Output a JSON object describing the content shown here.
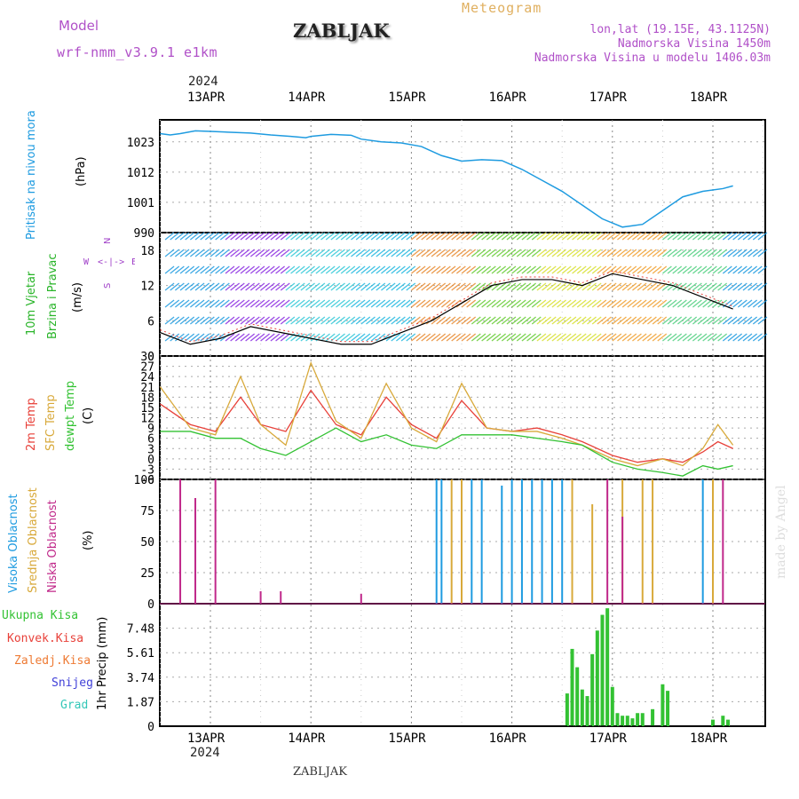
{
  "header": {
    "model_label": "Model",
    "model_value": "wrf-nmm_v3.9.1 e1km",
    "station": "ZABLJAK",
    "meteogram": "Meteogram",
    "lonlat": "lon,lat (19.15E, 43.1125N)",
    "elevation": "Nadmorska Visina 1450m",
    "model_elevation": "Nadmorska Visina u modelu 1406.03m",
    "year": "2024",
    "footer_station": "ZABLJAK",
    "watermark": "made by Angel"
  },
  "colors": {
    "pressure": "#1e9be0",
    "temp2m": "#e8413a",
    "sfc": "#d8a93a",
    "dewpt": "#33c233",
    "cloud_high": "#1e9be0",
    "cloud_mid": "#d8a93a",
    "cloud_low": "#c0288a",
    "precip_total": "#33c233",
    "precip_conv": "#e8413a",
    "precip_frozen": "#ee7a33",
    "precip_snow": "#4040d8",
    "precip_graupel": "#33c7b8",
    "wind_title": "#28b428",
    "wind_dir": "#a040c8"
  },
  "chart_data": [
    {
      "type": "line",
      "name": "pressure",
      "ylabel": [
        "Pritisak na nivou mora",
        "(hPa)"
      ],
      "yticks": [
        990,
        1001,
        1012,
        1023
      ],
      "ylim": [
        990,
        1031
      ],
      "x_days": [
        "13APR",
        "14APR",
        "15APR",
        "16APR",
        "17APR",
        "18APR"
      ],
      "x": [
        0.0,
        0.1,
        0.2,
        0.35,
        0.5,
        0.7,
        0.9,
        1.1,
        1.3,
        1.45,
        1.5,
        1.7,
        1.9,
        2.0,
        2.2,
        2.4,
        2.6,
        2.8,
        3.0,
        3.2,
        3.4,
        3.6,
        3.8,
        4.0,
        4.2,
        4.4,
        4.6,
        4.8,
        5.0,
        5.2,
        5.4,
        5.6,
        5.7
      ],
      "y": [
        1026,
        1025.5,
        1026,
        1027,
        1026.8,
        1026.5,
        1026.2,
        1025.5,
        1025,
        1024.5,
        1025,
        1025.7,
        1025.4,
        1024,
        1023,
        1022.6,
        1021.3,
        1018,
        1016,
        1016.5,
        1016.2,
        1013,
        1009,
        1005,
        1000,
        995,
        992,
        993,
        998,
        1003,
        1005,
        1006,
        1007
      ]
    },
    {
      "type": "line",
      "name": "wind",
      "ylabel": [
        "10m Vjetar",
        "Brzina i Pravac",
        "(m/s)"
      ],
      "yticks": [
        0,
        6,
        12,
        18
      ],
      "ylim": [
        0,
        21
      ],
      "legend": [
        "N",
        "W",
        "E",
        "S"
      ],
      "series": [
        {
          "x": [
            0.0,
            0.3,
            0.6,
            0.9,
            1.2,
            1.5,
            1.8,
            2.1,
            2.4,
            2.7,
            3.0,
            3.3,
            3.6,
            3.9,
            4.2,
            4.5,
            4.8,
            5.1,
            5.4,
            5.7
          ],
          "y": [
            4,
            2,
            3,
            5,
            4,
            3,
            2,
            2,
            4,
            6,
            9,
            12,
            13,
            13,
            12,
            14,
            13,
            12,
            10,
            8
          ]
        }
      ]
    },
    {
      "type": "line",
      "name": "temperature",
      "ylabel": [
        "2m Temp",
        "SFC Temp",
        "dewpt Temp",
        "(C)"
      ],
      "yticks": [
        -6,
        -3,
        0,
        3,
        6,
        9,
        12,
        15,
        18,
        21,
        24,
        27,
        30
      ],
      "ylim": [
        -6,
        30
      ],
      "x": [
        0.0,
        0.3,
        0.55,
        0.8,
        1.0,
        1.25,
        1.5,
        1.75,
        2.0,
        2.25,
        2.5,
        2.75,
        3.0,
        3.25,
        3.5,
        3.75,
        4.0,
        4.2,
        4.5,
        4.75,
        5.0,
        5.2,
        5.4,
        5.55,
        5.7
      ],
      "series": [
        {
          "name": "2m Temp",
          "y": [
            16,
            10,
            8,
            18,
            10,
            8,
            20,
            10,
            7,
            18,
            10,
            6,
            17,
            9,
            8,
            9,
            7,
            5,
            1,
            -1,
            0,
            -1,
            2,
            5,
            3
          ]
        },
        {
          "name": "SFC Temp",
          "y": [
            21,
            9,
            7,
            24,
            10,
            4,
            28,
            11,
            6,
            22,
            9,
            5,
            22,
            9,
            8,
            8,
            6,
            4,
            0,
            -2,
            0,
            -2,
            3,
            10,
            4
          ]
        },
        {
          "name": "dewpt Temp",
          "y": [
            8,
            8,
            6,
            6,
            3,
            1,
            5,
            9,
            5,
            7,
            4,
            3,
            7,
            7,
            7,
            6,
            5,
            4,
            -1,
            -3,
            -4,
            -5,
            -2,
            -3,
            -2
          ]
        }
      ]
    },
    {
      "type": "bar",
      "name": "cloud",
      "ylabel": [
        "Visoka Oblacnost",
        "Srednja Oblacnost",
        "Niska Oblacnost",
        "(%)"
      ],
      "yticks": [
        0,
        25,
        50,
        75,
        100
      ],
      "ylim": [
        0,
        100
      ],
      "series": [
        {
          "name": "Visoka Oblacnost",
          "x": [
            2.75,
            2.8,
            3.1,
            3.2,
            3.4,
            3.5,
            3.6,
            3.7,
            3.8,
            3.9,
            4.0,
            5.4
          ],
          "y": [
            100,
            100,
            100,
            100,
            95,
            100,
            100,
            100,
            100,
            100,
            100,
            100
          ]
        },
        {
          "name": "Srednja Oblacnost",
          "x": [
            2.9,
            3.0,
            4.1,
            4.3,
            4.6,
            4.8,
            4.9,
            5.5
          ],
          "y": [
            100,
            100,
            100,
            80,
            100,
            100,
            100,
            100
          ]
        },
        {
          "name": "Niska Oblacnost",
          "x": [
            0.2,
            0.35,
            0.55,
            1.0,
            1.2,
            2.0,
            4.45,
            4.6,
            5.6
          ],
          "y": [
            100,
            85,
            100,
            10,
            10,
            8,
            100,
            70,
            100
          ]
        }
      ]
    },
    {
      "type": "bar",
      "name": "precipitation",
      "ylabel": [
        "1hr Precip (mm)"
      ],
      "yticks": [
        0,
        1.87,
        3.74,
        5.61,
        7.48
      ],
      "ylim": [
        0,
        9.35
      ],
      "legend": [
        "Ukupna Kisa",
        "Konvek.Kisa",
        "Zaledj.Kisa",
        "Snijeg",
        "Grad"
      ],
      "series": [
        {
          "name": "Ukupna Kisa",
          "x": [
            4.05,
            4.1,
            4.15,
            4.2,
            4.25,
            4.3,
            4.35,
            4.4,
            4.45,
            4.5,
            4.55,
            4.6,
            4.65,
            4.7,
            4.75,
            4.8,
            4.9,
            5.0,
            5.05,
            5.5,
            5.6,
            5.65
          ],
          "y": [
            2.5,
            5.9,
            4.5,
            2.8,
            2.3,
            5.5,
            7.3,
            8.5,
            9.0,
            3.0,
            1.0,
            0.8,
            0.8,
            0.6,
            1.0,
            1.0,
            1.3,
            3.2,
            2.7,
            0.5,
            0.8,
            0.5
          ]
        }
      ]
    }
  ]
}
